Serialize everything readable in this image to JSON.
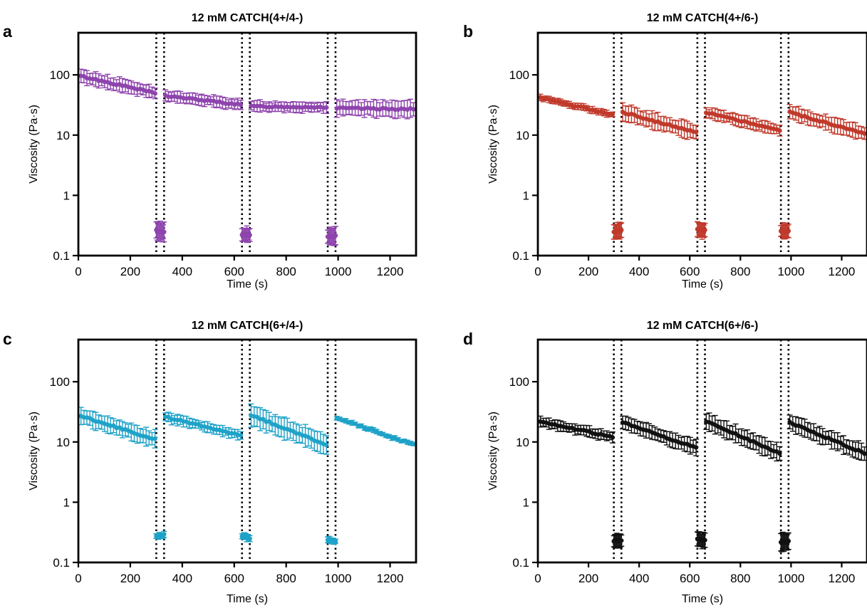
{
  "chart_data": [
    {
      "panel": "a",
      "type": "scatter",
      "title": "12 mM CATCH(4+/4-)",
      "xlabel": "Time (s)",
      "ylabel": "Viscosity (Pa·s)",
      "xlim": [
        0,
        1300
      ],
      "ylim": [
        0.1,
        500
      ],
      "yscale": "log",
      "xticks": [
        "0",
        "200",
        "400",
        "600",
        "800",
        "1000",
        "1200"
      ],
      "yticks": [
        "0.1",
        "1",
        "10",
        "100"
      ],
      "color": "#8E44AD",
      "grid": false,
      "vlines": [
        300,
        330,
        630,
        660,
        960,
        990
      ],
      "segments": [
        {
          "x0": 10,
          "x1": 295,
          "y0": 95,
          "y1": 50,
          "err_frac": 0.28
        },
        {
          "x0": 335,
          "x1": 625,
          "y0": 45,
          "y1": 32,
          "err_frac": 0.22
        },
        {
          "x0": 665,
          "x1": 955,
          "y0": 30,
          "y1": 29,
          "err_frac": 0.22
        },
        {
          "x0": 995,
          "x1": 1290,
          "y0": 28,
          "y1": 27,
          "err_frac": 0.35
        }
      ],
      "low_segments": [
        {
          "x0": 300,
          "x1": 330,
          "y0": 0.26,
          "y1": 0.24,
          "err_frac": 0.4
        },
        {
          "x0": 630,
          "x1": 660,
          "y0": 0.22,
          "y1": 0.22,
          "err_frac": 0.3
        },
        {
          "x0": 960,
          "x1": 990,
          "y0": 0.21,
          "y1": 0.21,
          "err_frac": 0.35
        }
      ]
    },
    {
      "panel": "b",
      "type": "scatter",
      "title": "12 mM CATCH(4+/6-)",
      "xlabel": "Time (s)",
      "ylabel": "Viscosity (Pa·s)",
      "xlim": [
        0,
        1300
      ],
      "ylim": [
        0.1,
        500
      ],
      "yscale": "log",
      "xticks": [
        "0",
        "200",
        "400",
        "600",
        "800",
        "1000",
        "1200"
      ],
      "yticks": [
        "0.1",
        "1",
        "10",
        "100"
      ],
      "color": "#C0392B",
      "grid": false,
      "vlines": [
        300,
        330,
        630,
        660,
        960,
        990
      ],
      "segments": [
        {
          "x0": 10,
          "x1": 295,
          "y0": 42,
          "y1": 22,
          "err_frac": 0.12
        },
        {
          "x0": 335,
          "x1": 625,
          "y0": 24,
          "y1": 11,
          "err_frac": 0.35
        },
        {
          "x0": 665,
          "x1": 955,
          "y0": 24,
          "y1": 12,
          "err_frac": 0.22
        },
        {
          "x0": 995,
          "x1": 1290,
          "y0": 24,
          "y1": 10.5,
          "err_frac": 0.3
        }
      ],
      "low_segments": [
        {
          "x0": 300,
          "x1": 330,
          "y0": 0.25,
          "y1": 0.26,
          "err_frac": 0.35
        },
        {
          "x0": 630,
          "x1": 660,
          "y0": 0.27,
          "y1": 0.26,
          "err_frac": 0.3
        },
        {
          "x0": 960,
          "x1": 990,
          "y0": 0.26,
          "y1": 0.25,
          "err_frac": 0.3
        }
      ]
    },
    {
      "panel": "c",
      "type": "scatter",
      "title": "12 mM CATCH(6+/4-)",
      "xlabel": "Time (s)",
      "ylabel": "Viscosity (Pa·s)",
      "xlim": [
        0,
        1300
      ],
      "ylim": [
        0.1,
        500
      ],
      "yscale": "log",
      "xticks": [
        "0",
        "200",
        "400",
        "600",
        "800",
        "1000",
        "1200"
      ],
      "yticks": [
        "0.1",
        "1",
        "10",
        "100"
      ],
      "color": "#1FA2C8",
      "grid": false,
      "vlines": [
        300,
        330,
        630,
        660,
        960,
        990
      ],
      "segments": [
        {
          "x0": 10,
          "x1": 295,
          "y0": 27,
          "y1": 11,
          "err_frac": 0.35
        },
        {
          "x0": 335,
          "x1": 625,
          "y0": 26,
          "y1": 13,
          "err_frac": 0.2
        },
        {
          "x0": 665,
          "x1": 955,
          "y0": 28,
          "y1": 9,
          "err_frac": 0.45
        },
        {
          "x0": 995,
          "x1": 1290,
          "y0": 25,
          "y1": 9,
          "err_frac": 0.08
        }
      ],
      "low_segments": [
        {
          "x0": 300,
          "x1": 330,
          "y0": 0.27,
          "y1": 0.29,
          "err_frac": 0.1
        },
        {
          "x0": 630,
          "x1": 660,
          "y0": 0.28,
          "y1": 0.25,
          "err_frac": 0.12
        },
        {
          "x0": 960,
          "x1": 990,
          "y0": 0.24,
          "y1": 0.22,
          "err_frac": 0.1
        }
      ]
    },
    {
      "panel": "d",
      "type": "scatter",
      "title": "12 mM CATCH(6+/6-)",
      "xlabel": "Time (s)",
      "ylabel": "Viscosity (Pa·s)",
      "xlim": [
        0,
        1300
      ],
      "ylim": [
        0.1,
        500
      ],
      "yscale": "log",
      "xticks": [
        "0",
        "200",
        "400",
        "600",
        "800",
        "1000",
        "1200"
      ],
      "yticks": [
        "0.1",
        "1",
        "10",
        "100"
      ],
      "color": "#111111",
      "grid": false,
      "vlines": [
        300,
        330,
        630,
        660,
        960,
        990
      ],
      "segments": [
        {
          "x0": 10,
          "x1": 295,
          "y0": 22,
          "y1": 12,
          "err_frac": 0.2
        },
        {
          "x0": 335,
          "x1": 625,
          "y0": 21,
          "y1": 8,
          "err_frac": 0.3
        },
        {
          "x0": 665,
          "x1": 955,
          "y0": 22,
          "y1": 6.5,
          "err_frac": 0.35
        },
        {
          "x0": 995,
          "x1": 1290,
          "y0": 21,
          "y1": 6.5,
          "err_frac": 0.35
        }
      ],
      "low_segments": [
        {
          "x0": 300,
          "x1": 330,
          "y0": 0.23,
          "y1": 0.23,
          "err_frac": 0.25
        },
        {
          "x0": 630,
          "x1": 660,
          "y0": 0.25,
          "y1": 0.23,
          "err_frac": 0.3
        },
        {
          "x0": 960,
          "x1": 990,
          "y0": 0.22,
          "y1": 0.22,
          "err_frac": 0.35
        }
      ]
    }
  ]
}
